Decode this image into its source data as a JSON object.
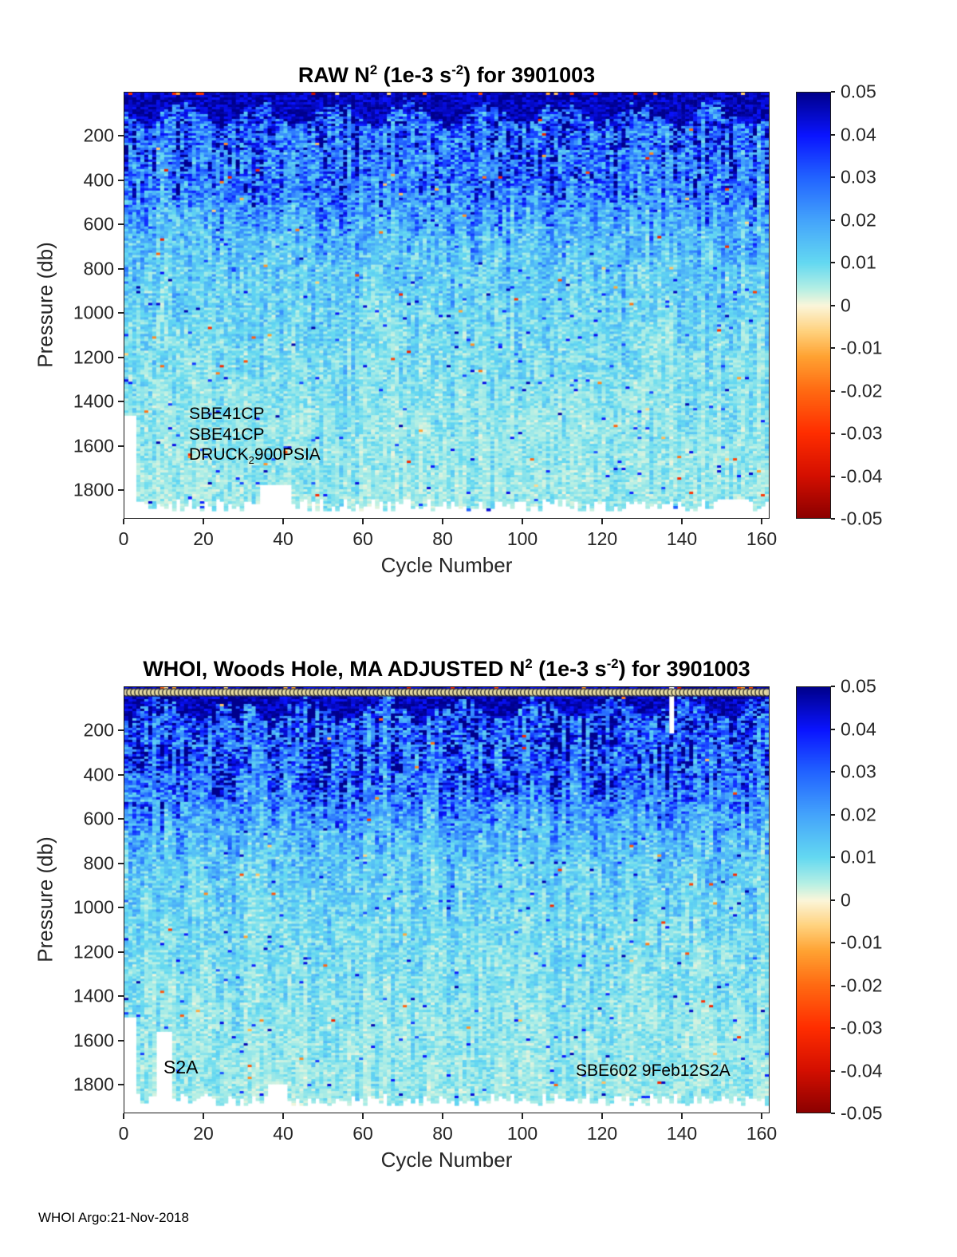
{
  "figure_footer": "WHOI Argo:21-Nov-2018",
  "axis": {
    "x_label": "Cycle Number",
    "y_label": "Pressure (db)",
    "x_ticks": [
      "0",
      "20",
      "40",
      "60",
      "80",
      "100",
      "120",
      "140",
      "160"
    ],
    "y_ticks": [
      "200",
      "400",
      "600",
      "800",
      "1000",
      "1200",
      "1400",
      "1600",
      "1800"
    ],
    "colorbar_ticks": [
      "0.05",
      "0.04",
      "0.03",
      "0.02",
      "0.01",
      "0",
      "-0.01",
      "-0.02",
      "-0.03",
      "-0.04",
      "-0.05"
    ]
  },
  "panels": [
    {
      "title": {
        "p1": "RAW N",
        "sup1": "2",
        "p2": " (1e-3 s",
        "sup2": "-2",
        "p3": ") for 3901003"
      },
      "annotations": {
        "line1": "SBE41CP",
        "line2": "SBE41CP",
        "line3_pre": "DRUCK",
        "line3_sub": "2",
        "line3_post": "900PSIA"
      }
    },
    {
      "title": {
        "p1": "WHOI, Woods Hole, MA  ADJUSTED N",
        "sup1": "2",
        "p2": " (1e-3 s",
        "sup2": "-2",
        "p3": ") for 3901003"
      },
      "annotations": {
        "left": "S2A",
        "right": "SBE602 9Feb12S2A"
      }
    }
  ],
  "colormap_stops": [
    {
      "v": -0.05,
      "c": "#8b0000"
    },
    {
      "v": -0.04,
      "c": "#d40f00"
    },
    {
      "v": -0.03,
      "c": "#ff2d00"
    },
    {
      "v": -0.02,
      "c": "#ff6a12"
    },
    {
      "v": -0.012,
      "c": "#ffa232"
    },
    {
      "v": -0.006,
      "c": "#ffd27e"
    },
    {
      "v": 0.0,
      "c": "#fbf6da"
    },
    {
      "v": 0.004,
      "c": "#b4efe4"
    },
    {
      "v": 0.01,
      "c": "#64d9f1"
    },
    {
      "v": 0.02,
      "c": "#44a4fb"
    },
    {
      "v": 0.03,
      "c": "#2264ff"
    },
    {
      "v": 0.04,
      "c": "#0a14ff"
    },
    {
      "v": 0.05,
      "c": "#00008c"
    }
  ],
  "chart_data": [
    {
      "type": "heatmap",
      "panel": "top",
      "title": "RAW N^2 (1e-3 s^-2) for 3901003",
      "xlabel": "Cycle Number",
      "ylabel": "Pressure (db)",
      "value_units": "1e-3 s^-2",
      "xlim": [
        0,
        162
      ],
      "ylim": [
        0,
        1930
      ],
      "y_axis_reversed": true,
      "clim": [
        -0.05,
        0.05
      ],
      "x_tick_values": [
        0,
        20,
        40,
        60,
        80,
        100,
        120,
        140,
        160
      ],
      "y_tick_values": [
        200,
        400,
        600,
        800,
        1000,
        1200,
        1400,
        1600,
        1800
      ],
      "colorbar_tick_values": [
        0.05,
        0.04,
        0.03,
        0.02,
        0.01,
        0,
        -0.01,
        -0.02,
        -0.03,
        -0.04,
        -0.05
      ],
      "n_cycles": 162,
      "max_profile_depth_db": 1880,
      "surface_layer": {
        "depth_db": 100,
        "n2_mean": 0.045,
        "note": "dark blue stratified cap with sparse negative (red/orange) speckles at the very surface"
      },
      "mean_profile": {
        "pressure_db": [
          0,
          40,
          90,
          150,
          300,
          450,
          550,
          650,
          800,
          1000,
          1200,
          1500,
          1900
        ],
        "n2_mean": [
          0.05,
          0.046,
          0.03,
          0.027,
          0.026,
          0.024,
          0.018,
          0.014,
          0.011,
          0.009,
          0.0075,
          0.006,
          0.005
        ]
      },
      "missing_data": "white below ~1880 db everywhere; cycles 0-2 end near 1460 db; cycles 34-41 end near 1780 db; cycles 149-155 end near 1845 db",
      "annotations": [
        "SBE41CP",
        "SBE41CP",
        "DRUCK_2900PSIA"
      ],
      "legend_position": "colorbar right",
      "grid": false
    },
    {
      "type": "heatmap",
      "panel": "bottom",
      "title": "WHOI, Woods Hole, MA  ADJUSTED N^2 (1e-3 s^-2) for 3901003",
      "xlabel": "Cycle Number",
      "ylabel": "Pressure (db)",
      "value_units": "1e-3 s^-2",
      "xlim": [
        0,
        162
      ],
      "ylim": [
        0,
        1930
      ],
      "y_axis_reversed": true,
      "clim": [
        -0.05,
        0.05
      ],
      "x_tick_values": [
        0,
        20,
        40,
        60,
        80,
        100,
        120,
        140,
        160
      ],
      "y_tick_values": [
        200,
        400,
        600,
        800,
        1000,
        1200,
        1400,
        1600,
        1800
      ],
      "colorbar_tick_values": [
        0.05,
        0.04,
        0.03,
        0.02,
        0.01,
        0,
        -0.01,
        -0.02,
        -0.03,
        -0.04,
        -0.05
      ],
      "n_cycles": 162,
      "max_profile_depth_db": 1880,
      "marker_row_at_top": true,
      "surface_layer": {
        "depth_db": 100,
        "n2_mean": 0.045,
        "note": "row of open circle markers along the top edge above the dark blue cap"
      },
      "mean_profile": {
        "pressure_db": [
          0,
          40,
          90,
          150,
          300,
          450,
          550,
          650,
          800,
          1000,
          1200,
          1500,
          1900
        ],
        "n2_mean": [
          0.05,
          0.046,
          0.032,
          0.03,
          0.028,
          0.026,
          0.02,
          0.015,
          0.011,
          0.009,
          0.0075,
          0.006,
          0.005
        ]
      },
      "missing_data": "white below ~1880 db; cycles 0-2 end near 1500 db; cycles 8-11 end near 1560 db; cycles 36-40 end near 1800 db; white vertical gap near cycle 138 in upper 200 db",
      "annotations": [
        "S2A",
        "SBE602 9Feb12S2A"
      ],
      "legend_position": "colorbar right",
      "grid": false
    }
  ]
}
